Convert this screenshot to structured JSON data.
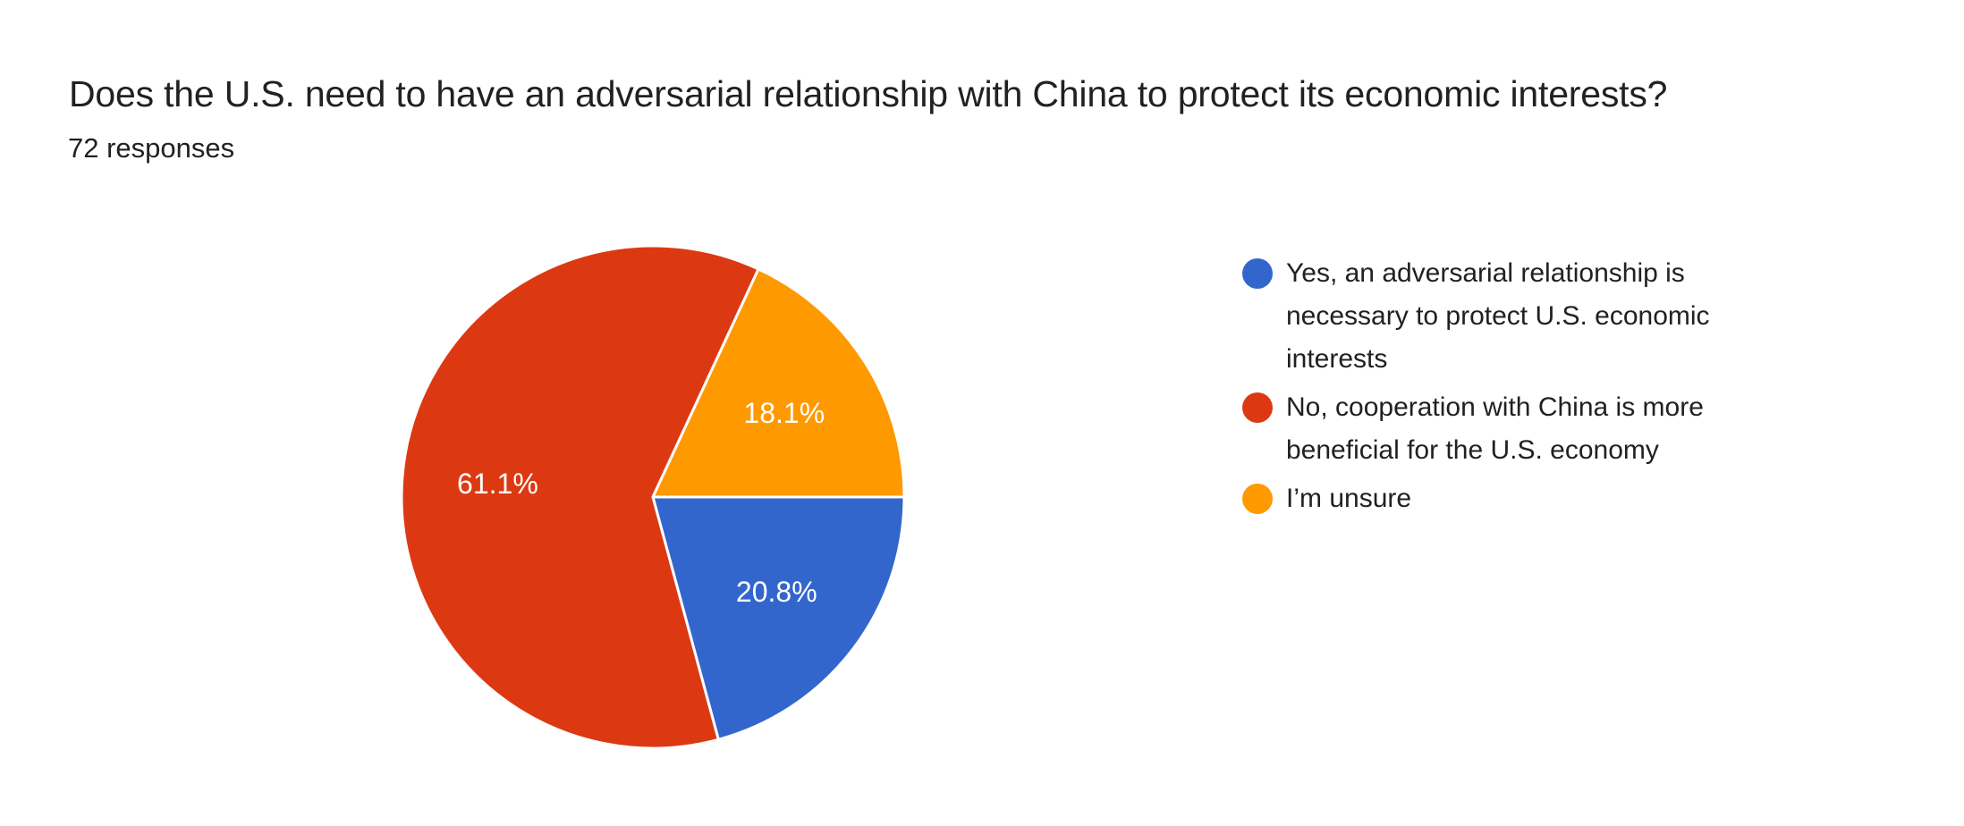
{
  "header": {
    "title": "Does the U.S. need to have an adversarial relationship with China to protect its economic interests?",
    "response_count": "72 responses"
  },
  "chart_data": {
    "type": "pie",
    "title": "Does the U.S. need to have an adversarial relationship with China to protect its economic interests?",
    "subtitle": "72 responses",
    "legend_position": "right",
    "start_angle_deg_clockwise_from_top": 90,
    "slices": [
      {
        "label": "Yes, an adversarial relationship is necessary to protect U.S. economic interests",
        "percent": 20.8,
        "percent_label": "20.8%",
        "color": "#3366CC"
      },
      {
        "label": "No, cooperation with China is more beneficial for the U.S. economy",
        "percent": 61.1,
        "percent_label": "61.1%",
        "color": "#DC3912"
      },
      {
        "label": "I’m unsure",
        "percent": 18.1,
        "percent_label": "18.1%",
        "color": "#FF9900"
      }
    ]
  },
  "colors": {
    "background": "#FFFFFF",
    "text_primary": "#212124",
    "slice_label_text": "#FFFFFF",
    "slice_separator": "#FFFFFF"
  }
}
